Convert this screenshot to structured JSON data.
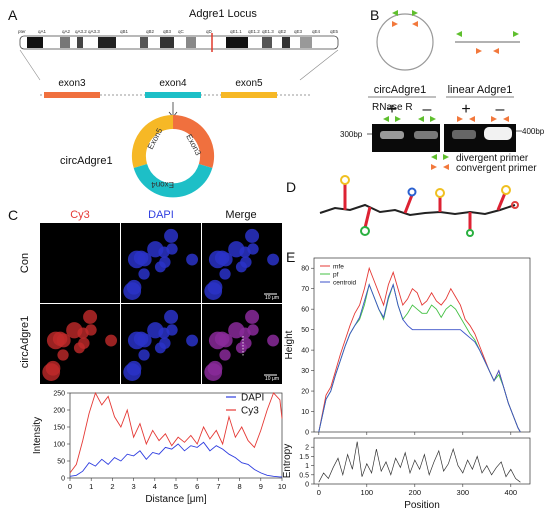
{
  "panel_letters": {
    "a": "A",
    "b": "B",
    "c": "C",
    "d": "D",
    "e": "E"
  },
  "panelA": {
    "title": "Adgre1 Locus",
    "bands": [
      "pter",
      "qA1",
      "qA2",
      "qA3.2",
      "qA3.3",
      "qB1",
      "qB2",
      "qB3",
      "qC",
      "qD",
      "qE1.1",
      "qE1.2",
      "qE1.3",
      "qE2",
      "qE3",
      "qE4",
      "qE5"
    ],
    "exons": [
      "exon3",
      "exon4",
      "exon5"
    ],
    "circ_label": "circAdgre1",
    "ring_labels": [
      "Exon5",
      "Exon3",
      "Exon4"
    ],
    "colors": {
      "exon3": "#f0703e",
      "exon4": "#1dbfc7",
      "exon5": "#f6b826",
      "marker": "#e0392b"
    }
  },
  "panelB": {
    "headers": [
      "circAdgre1",
      "linear Adgre1"
    ],
    "rnase_label": "RNase R",
    "signs": [
      "+",
      "–",
      "+",
      "–"
    ],
    "ladder_left": "300bp",
    "ladder_right": "400bp",
    "legend": [
      "divergent primer",
      "convergent primer"
    ],
    "colors": {
      "divergent": "#5fbf2e",
      "convergent": "#f2783c"
    }
  },
  "panelC": {
    "col_labels": [
      "Cy3",
      "DAPI",
      "Merge"
    ],
    "row_labels": [
      "Con",
      "circAdgre1"
    ],
    "scale_bar": "10 μm",
    "colors": {
      "cy3": "#e53935",
      "dapi": "#2f3ee0"
    }
  },
  "chart_data": [
    {
      "type": "line",
      "panel": "C",
      "xlabel": "Distance [μm]",
      "ylabel": "Intensity",
      "xlim": [
        0,
        10
      ],
      "ylim": [
        0,
        250
      ],
      "xticks": [
        0,
        1,
        2,
        3,
        4,
        5,
        6,
        7,
        8,
        9,
        10
      ],
      "yticks": [
        0,
        50,
        100,
        150,
        200,
        250
      ],
      "legend_position": "top-right",
      "series": [
        {
          "name": "DAPI",
          "color": "#2f3ee0",
          "x": [
            0,
            0.3,
            0.6,
            0.9,
            1.2,
            1.5,
            1.8,
            2.1,
            2.4,
            2.7,
            3.0,
            3.3,
            3.6,
            3.9,
            4.2,
            4.5,
            4.8,
            5.1,
            5.4,
            5.7,
            6.0,
            6.3,
            6.6,
            6.9,
            7.2,
            7.5,
            7.8,
            8.1,
            8.4,
            8.7,
            9.0,
            9.3,
            9.6,
            9.9,
            10.0
          ],
          "values": [
            5,
            8,
            20,
            45,
            35,
            55,
            40,
            60,
            50,
            70,
            65,
            80,
            55,
            75,
            70,
            90,
            85,
            100,
            80,
            95,
            90,
            105,
            80,
            95,
            85,
            70,
            60,
            45,
            40,
            25,
            15,
            8,
            5,
            3,
            3
          ]
        },
        {
          "name": "Cy3",
          "color": "#e53935",
          "x": [
            0,
            0.3,
            0.6,
            0.9,
            1.2,
            1.5,
            1.8,
            2.1,
            2.4,
            2.7,
            3.0,
            3.3,
            3.6,
            3.9,
            4.2,
            4.5,
            4.8,
            5.1,
            5.4,
            5.7,
            6.0,
            6.3,
            6.6,
            6.9,
            7.2,
            7.5,
            7.8,
            8.1,
            8.4,
            8.7,
            9.0,
            9.3,
            9.6,
            9.9,
            10.0
          ],
          "values": [
            15,
            40,
            110,
            190,
            250,
            215,
            240,
            180,
            150,
            200,
            120,
            160,
            100,
            140,
            110,
            130,
            95,
            120,
            105,
            125,
            100,
            150,
            115,
            140,
            100,
            180,
            120,
            150,
            110,
            90,
            140,
            200,
            250,
            230,
            175
          ]
        }
      ]
    },
    {
      "type": "line",
      "panel": "E",
      "xlabel": "",
      "ylabel": "Height",
      "xlim": [
        -10,
        440
      ],
      "ylim": [
        0,
        85
      ],
      "xticks": [
        0,
        100,
        200,
        300,
        400
      ],
      "yticks": [
        0,
        10,
        20,
        30,
        40,
        50,
        60,
        70,
        80
      ],
      "legend_position": "top-left",
      "series": [
        {
          "name": "mfe",
          "color": "#e53935",
          "x": [
            0,
            15,
            25,
            35,
            45,
            55,
            65,
            75,
            85,
            95,
            105,
            115,
            125,
            135,
            145,
            155,
            165,
            175,
            185,
            195,
            205,
            215,
            225,
            235,
            245,
            255,
            265,
            275,
            285,
            295,
            305,
            315,
            325,
            335,
            345,
            355,
            365,
            375,
            385,
            395,
            405,
            415,
            420
          ],
          "values": [
            0,
            18,
            22,
            30,
            38,
            45,
            52,
            58,
            62,
            70,
            80,
            74,
            68,
            62,
            72,
            78,
            70,
            62,
            65,
            70,
            68,
            62,
            64,
            68,
            64,
            62,
            65,
            70,
            66,
            62,
            55,
            52,
            48,
            42,
            36,
            30,
            25,
            30,
            22,
            14,
            8,
            2,
            0
          ]
        },
        {
          "name": "pf",
          "color": "#43c043",
          "x": [
            0,
            15,
            25,
            35,
            45,
            55,
            65,
            75,
            85,
            95,
            105,
            115,
            125,
            135,
            145,
            155,
            165,
            175,
            185,
            195,
            205,
            215,
            225,
            235,
            245,
            255,
            265,
            275,
            285,
            295,
            305,
            315,
            325,
            335,
            345,
            355,
            365,
            375,
            385,
            395,
            405,
            415,
            420
          ],
          "values": [
            0,
            16,
            20,
            28,
            35,
            42,
            48,
            52,
            55,
            62,
            72,
            66,
            60,
            55,
            65,
            72,
            62,
            55,
            58,
            62,
            60,
            58,
            58,
            62,
            60,
            56,
            60,
            62,
            60,
            56,
            52,
            48,
            45,
            40,
            35,
            30,
            25,
            28,
            22,
            14,
            8,
            2,
            0
          ]
        },
        {
          "name": "centroid",
          "color": "#3b52c9",
          "x": [
            0,
            15,
            25,
            35,
            45,
            55,
            65,
            75,
            85,
            95,
            105,
            115,
            125,
            135,
            145,
            155,
            165,
            175,
            185,
            195,
            205,
            215,
            225,
            235,
            245,
            255,
            265,
            275,
            285,
            295,
            305,
            315,
            325,
            335,
            345,
            355,
            365,
            375,
            385,
            395,
            405,
            415,
            420
          ],
          "values": [
            0,
            16,
            20,
            28,
            35,
            42,
            48,
            52,
            56,
            64,
            72,
            66,
            60,
            56,
            66,
            72,
            62,
            55,
            52,
            50,
            50,
            50,
            50,
            50,
            50,
            50,
            50,
            50,
            50,
            50,
            48,
            46,
            44,
            40,
            35,
            30,
            25,
            30,
            22,
            14,
            8,
            2,
            0
          ]
        }
      ]
    },
    {
      "type": "line",
      "panel": "E",
      "xlabel": "Position",
      "ylabel": "Entropy",
      "xlim": [
        -10,
        440
      ],
      "ylim": [
        0,
        2.5
      ],
      "xticks": [
        0,
        100,
        200,
        300,
        400
      ],
      "yticks": [
        0,
        0.5,
        1,
        1.5,
        2
      ],
      "series": [
        {
          "name": "",
          "color": "#333333",
          "x": [
            0,
            10,
            20,
            30,
            40,
            50,
            60,
            70,
            80,
            90,
            100,
            110,
            120,
            130,
            140,
            150,
            160,
            170,
            180,
            190,
            200,
            210,
            220,
            230,
            240,
            250,
            260,
            270,
            280,
            290,
            300,
            310,
            320,
            330,
            340,
            350,
            360,
            370,
            380,
            390,
            400,
            410,
            420
          ],
          "values": [
            0.1,
            0.6,
            0.3,
            0.9,
            1.4,
            0.5,
            1.6,
            0.8,
            2.3,
            0.4,
            1.1,
            0.6,
            1.9,
            0.7,
            1.2,
            0.5,
            1.4,
            0.9,
            1.7,
            0.6,
            1.3,
            0.8,
            1.6,
            0.5,
            1.2,
            1.8,
            0.7,
            1.1,
            1.9,
            1.0,
            0.6,
            1.3,
            0.8,
            1.5,
            0.6,
            1.0,
            0.5,
            0.9,
            1.2,
            0.4,
            0.8,
            0.3,
            0.1
          ]
        }
      ]
    }
  ]
}
